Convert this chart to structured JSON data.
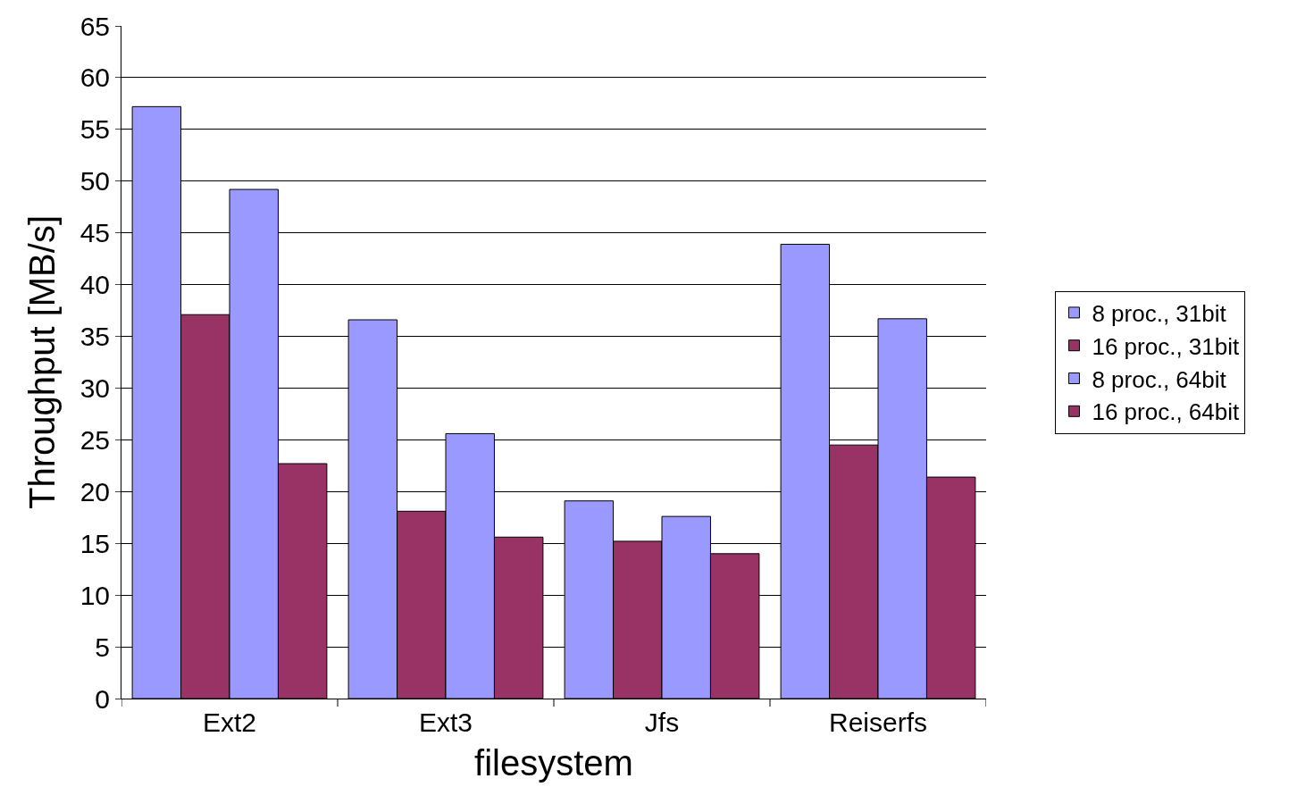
{
  "chart_data": {
    "type": "bar",
    "xlabel": "filesystem",
    "ylabel": "Throughput [MB/s]",
    "categories": [
      "Ext2",
      "Ext3",
      "Jfs",
      "Reiserfs"
    ],
    "series": [
      {
        "name": "8 proc., 31bit",
        "color": "#9999ff",
        "values": [
          57.2,
          36.6,
          19.1,
          43.9
        ]
      },
      {
        "name": "16 proc., 31bit",
        "color": "#993366",
        "values": [
          37.1,
          18.1,
          15.2,
          24.5
        ]
      },
      {
        "name": "8 proc., 64bit",
        "color": "#9999ff",
        "values": [
          49.2,
          25.6,
          17.6,
          36.7
        ]
      },
      {
        "name": "16 proc., 64bit",
        "color": "#993366",
        "values": [
          22.7,
          15.6,
          14.0,
          21.4
        ]
      }
    ],
    "ylim": [
      0,
      65
    ],
    "yticks": [
      0,
      5,
      10,
      15,
      20,
      25,
      30,
      35,
      40,
      45,
      50,
      55,
      60,
      65
    ],
    "grid": "y",
    "legend": "right"
  }
}
